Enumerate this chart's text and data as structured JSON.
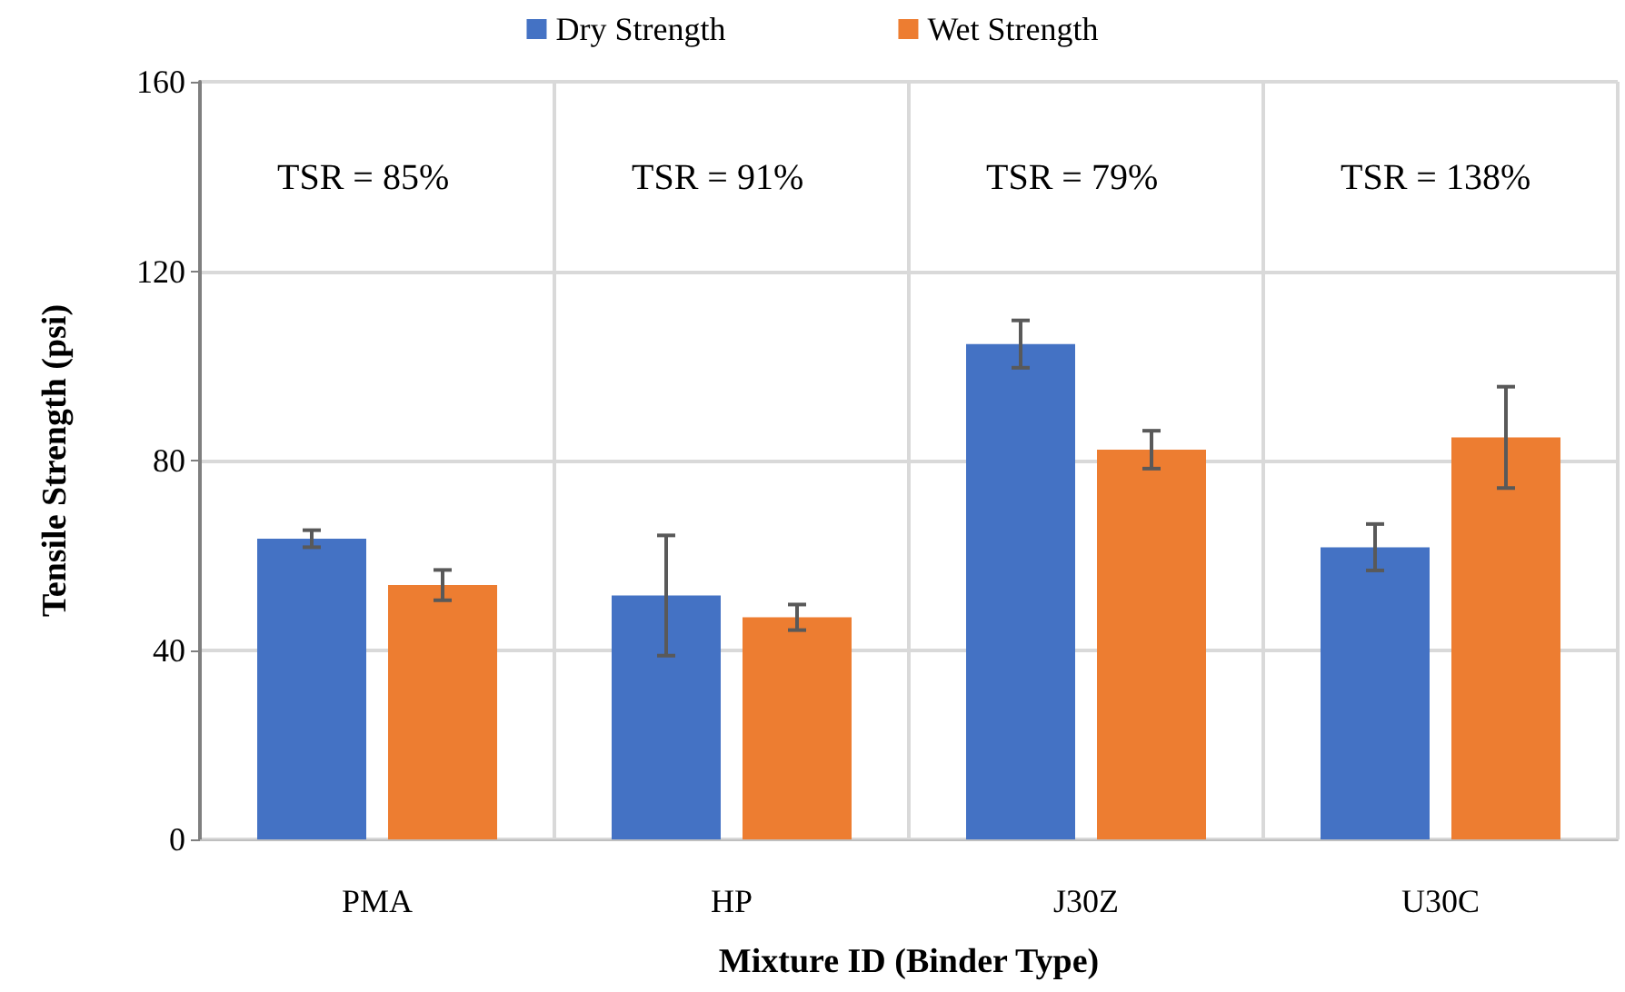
{
  "chart_data": {
    "type": "bar",
    "xlabel": "Mixture ID (Binder Type)",
    "ylabel": "Tensile Strength (psi)",
    "categories": [
      "PMA",
      "HP",
      "J30Z",
      "U30C"
    ],
    "series": [
      {
        "name": "Dry Strength",
        "color": "#4472c4",
        "values": [
          63.5,
          51.5,
          104.6,
          61.7
        ],
        "errors": [
          1.8,
          12.7,
          5,
          4.9
        ]
      },
      {
        "name": "Wet Strength",
        "color": "#ed7d31",
        "values": [
          53.7,
          46.9,
          82.3,
          84.9
        ],
        "errors": [
          3.2,
          2.7,
          4,
          10.7
        ]
      }
    ],
    "ylim": [
      0,
      160
    ],
    "yticks": [
      0,
      40,
      80,
      120,
      160
    ],
    "grid": true,
    "legend": "top",
    "annotations": [
      "TSR = 85%",
      "TSR = 91%",
      "TSR = 79%",
      "TSR = 138%"
    ]
  }
}
